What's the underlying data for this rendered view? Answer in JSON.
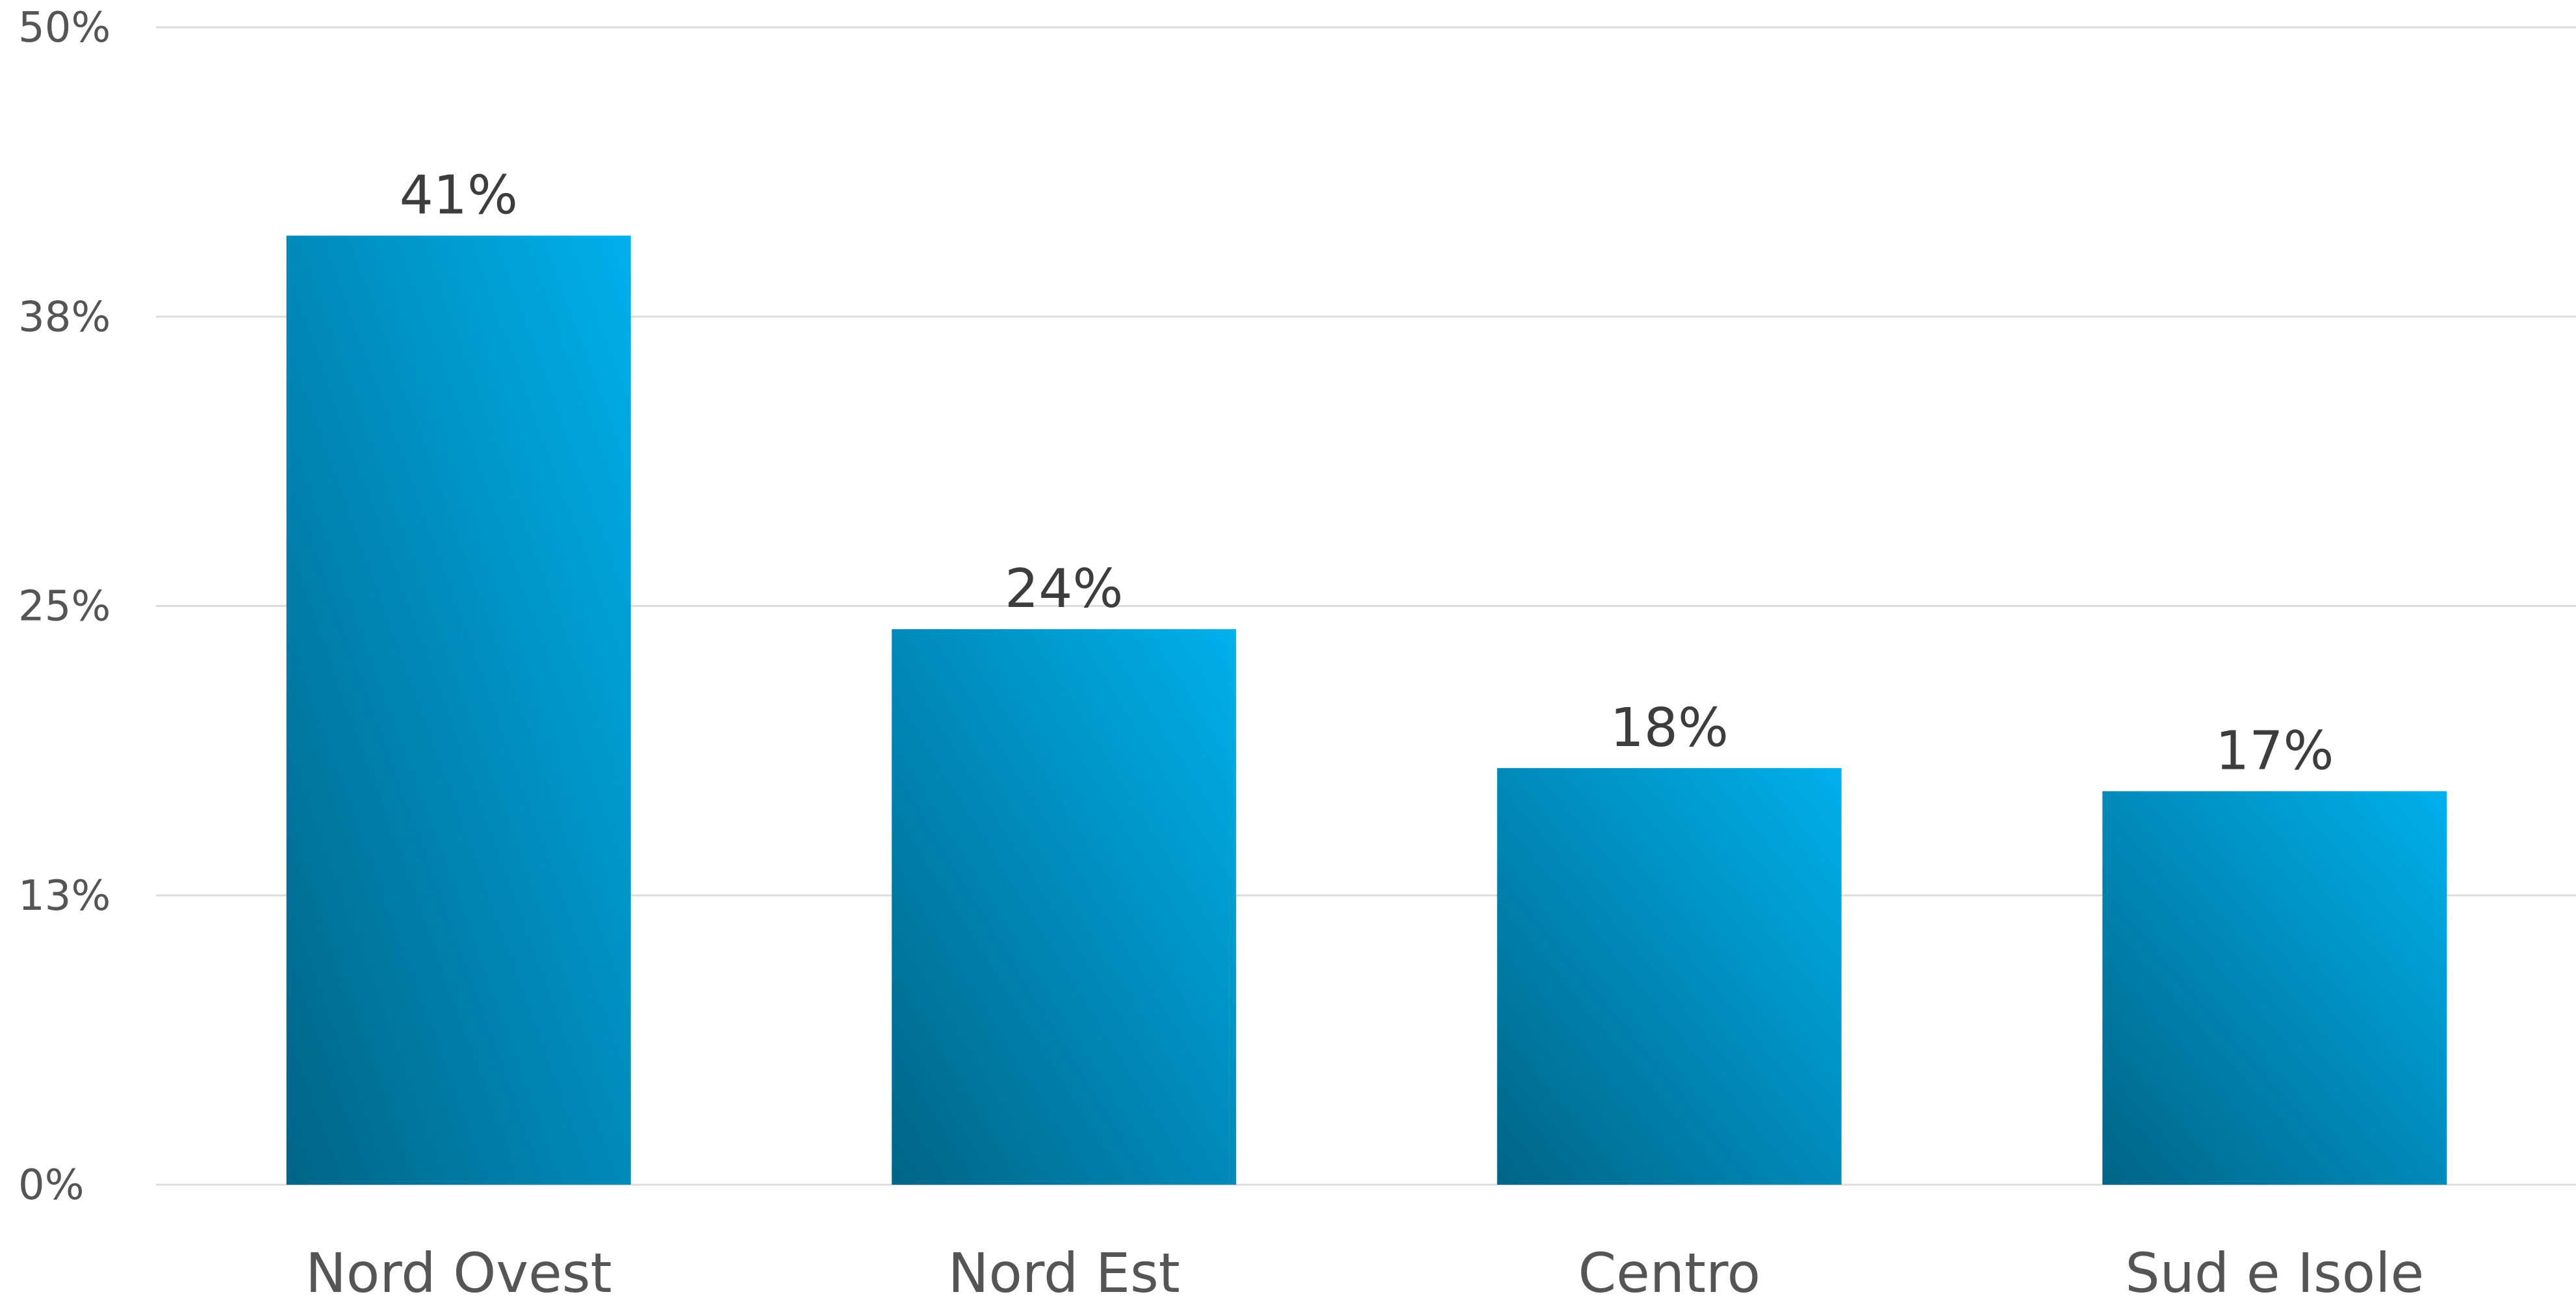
{
  "chart_data": {
    "type": "bar",
    "title": "",
    "xlabel": "",
    "ylabel": "",
    "categories": [
      "Nord Ovest",
      "Nord Est",
      "Centro",
      "Sud e Isole"
    ],
    "values": [
      41,
      24,
      18,
      17
    ],
    "value_labels": [
      "41%",
      "24%",
      "18%",
      "17%"
    ],
    "ylim": [
      0,
      50
    ],
    "y_ticks": [
      0,
      12.5,
      25,
      37.5,
      50
    ],
    "y_tick_labels": [
      "0%",
      "13%",
      "25%",
      "38%",
      "50%"
    ],
    "grid": true,
    "legend": "none",
    "colors": {
      "bar_gradient_top": "#00b0ec",
      "bar_gradient_bottom": "#006587",
      "grid": "#dddddd",
      "axis_text": "#555555",
      "data_label_text": "#3d3d3d"
    }
  }
}
